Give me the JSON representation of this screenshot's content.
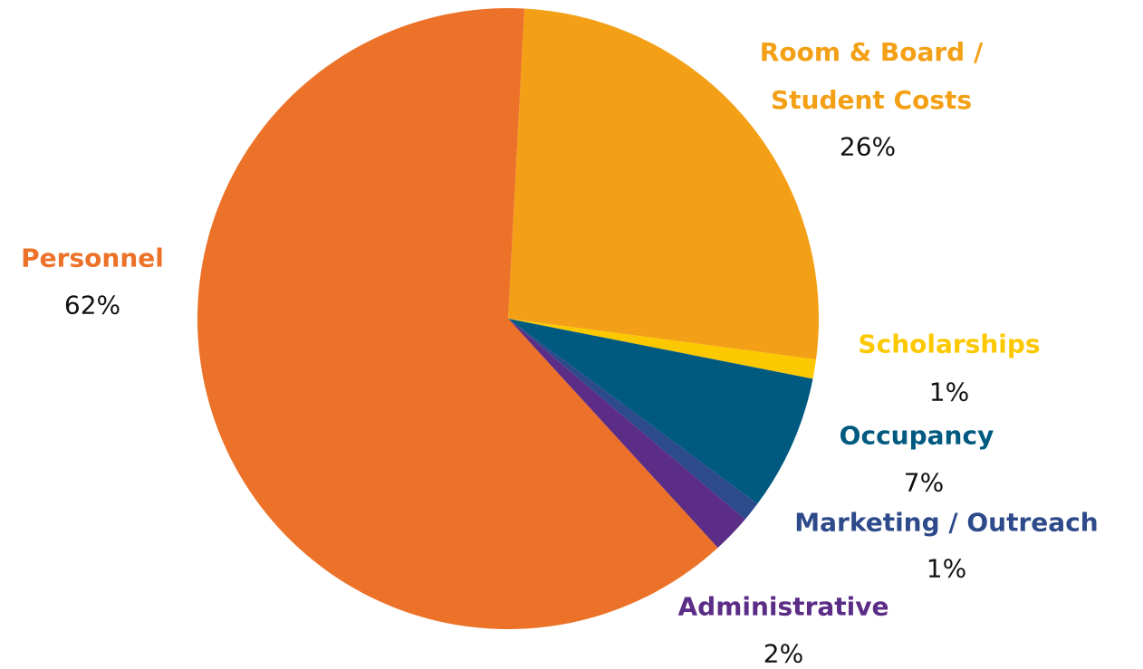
{
  "chart_data": {
    "type": "pie",
    "categories": [
      "Room & Board / Student Costs",
      "Scholarships",
      "Occupancy",
      "Marketing / Outreach",
      "Administrative",
      "Personnel"
    ],
    "values": [
      26,
      1,
      7,
      1,
      2,
      62
    ],
    "value_labels": [
      "26%",
      "1%",
      "7%",
      "1%",
      "2%",
      "62%"
    ],
    "colors": [
      "#f3a016",
      "#fcc800",
      "#005a80",
      "#2d4a8a",
      "#5b2d86",
      "#ec7229"
    ]
  }
}
